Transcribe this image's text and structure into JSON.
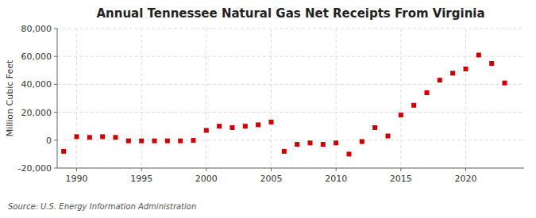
{
  "chart_data": {
    "type": "scatter",
    "title": "Annual Tennessee Natural Gas Net Receipts From Virginia",
    "ylabel": "Million Cubic Feet",
    "source": "Source: U.S. Energy Information Administration",
    "x": [
      1989,
      1990,
      1991,
      1992,
      1993,
      1994,
      1995,
      1996,
      1997,
      1998,
      1999,
      2000,
      2001,
      2002,
      2003,
      2004,
      2005,
      2006,
      2007,
      2008,
      2009,
      2010,
      2011,
      2012,
      2013,
      2014,
      2015,
      2016,
      2017,
      2018,
      2019,
      2020,
      2021,
      2022,
      2023
    ],
    "values": [
      -8000,
      2500,
      2000,
      2500,
      2000,
      -500,
      -500,
      -500,
      -500,
      -500,
      -200,
      7000,
      10000,
      9000,
      10000,
      11000,
      13000,
      -8000,
      -3000,
      -2000,
      -3000,
      -2000,
      -10000,
      -1000,
      9000,
      3000,
      18000,
      25000,
      34000,
      43000,
      48000,
      51000,
      61000,
      55000,
      41000
    ],
    "color": "#cc0000",
    "marker": "square",
    "xlim": [
      1988.5,
      2024.5
    ],
    "xticks": [
      1990,
      1995,
      2000,
      2005,
      2010,
      2015,
      2020
    ],
    "ylim": [
      -20000,
      80000
    ],
    "yticks": [
      {
        "value": -20000,
        "label": "-20,000"
      },
      0,
      {
        "value": 20000,
        "label": "20,000"
      },
      {
        "value": 40000,
        "label": "40,000"
      },
      {
        "value": 60000,
        "label": "60,000"
      },
      {
        "value": 80000,
        "label": "80,000"
      }
    ],
    "grid": true
  }
}
